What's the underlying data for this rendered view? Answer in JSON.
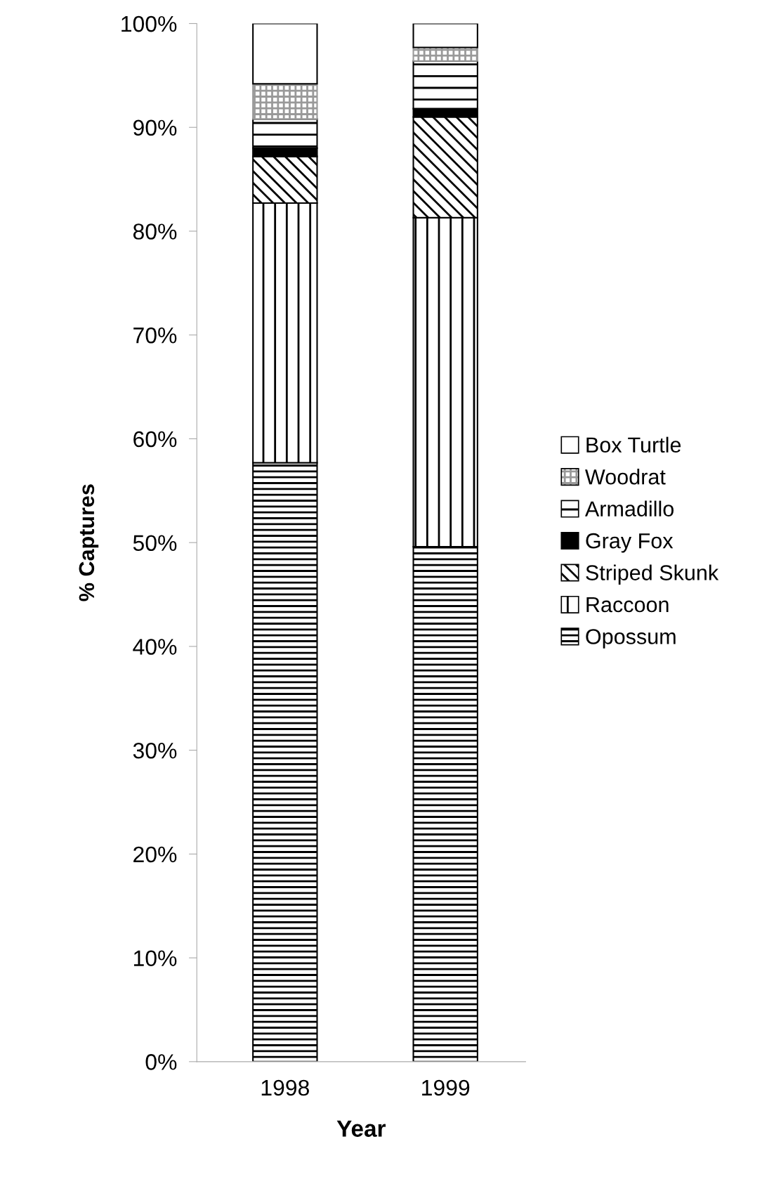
{
  "chart_data": {
    "type": "bar",
    "stacked": true,
    "xlabel": "Year",
    "ylabel": "% Captures",
    "categories": [
      "1998",
      "1999"
    ],
    "series": [
      {
        "name": "Opossum",
        "color": "#000000",
        "values": [
          57.7,
          49.6
        ]
      },
      {
        "name": "Raccoon",
        "color": "#000000",
        "values": [
          25.0,
          31.7
        ]
      },
      {
        "name": "Striped Skunk",
        "color": "#000000",
        "values": [
          4.5,
          9.7
        ]
      },
      {
        "name": "Gray Fox",
        "color": "#000000",
        "values": [
          0.8,
          0.8
        ]
      },
      {
        "name": "Armadillo",
        "color": "#000000",
        "values": [
          2.8,
          4.6
        ]
      },
      {
        "name": "Woodrat",
        "color": "#999999",
        "values": [
          3.4,
          1.3
        ]
      },
      {
        "name": "Box Turtle",
        "color": "#ffffff",
        "values": [
          5.8,
          2.3
        ]
      }
    ],
    "ylim": [
      0,
      100
    ],
    "yticks": [
      {
        "value": 0,
        "label": "0%"
      },
      {
        "value": 10,
        "label": "10%"
      },
      {
        "value": 20,
        "label": "20%"
      },
      {
        "value": 30,
        "label": "30%"
      },
      {
        "value": 40,
        "label": "40%"
      },
      {
        "value": 50,
        "label": "50%"
      },
      {
        "value": 60,
        "label": "60%"
      },
      {
        "value": 70,
        "label": "70%"
      },
      {
        "value": 80,
        "label": "80%"
      },
      {
        "value": 90,
        "label": "90%"
      },
      {
        "value": 100,
        "label": "100%"
      }
    ],
    "grid": false,
    "legend": "right"
  }
}
